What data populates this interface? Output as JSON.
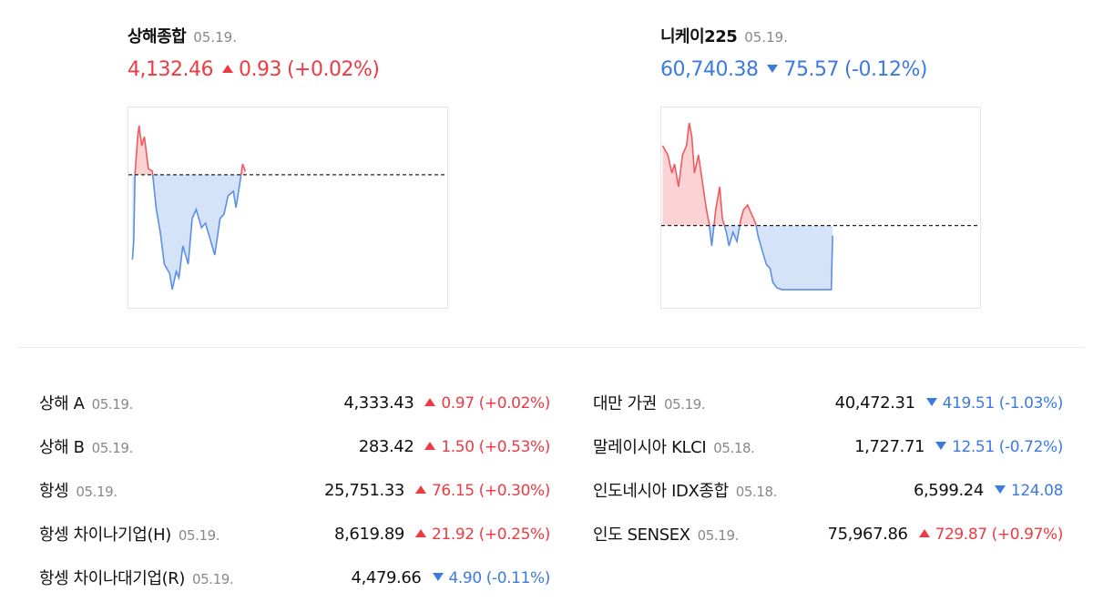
{
  "charts": [
    {
      "name": "상해종합",
      "date": "05.19.",
      "price": "4,132.46",
      "change": "0.93",
      "pct": "(+0.02%)",
      "direction": "up",
      "chart": {
        "type": "line",
        "xlim": [
          0,
          240
        ],
        "ylim": [
          4095,
          4150
        ],
        "baseline": 4131.53,
        "x": [
          3,
          4,
          5,
          7,
          8,
          10,
          12,
          15,
          18,
          21,
          24,
          27,
          31,
          33,
          36,
          38,
          41,
          45,
          48,
          51,
          55,
          58,
          62,
          65,
          69,
          72,
          75,
          79,
          81,
          84,
          86,
          88
        ],
        "values": [
          4108.25,
          4113.25,
          4132,
          4142,
          4145,
          4139.5,
          4142,
          4133.25,
          4132.5,
          4122,
          4115.75,
          4107,
          4104.5,
          4100,
          4105,
          4103.25,
          4112,
          4107,
          4119.5,
          4122,
          4117,
          4118.25,
          4113.25,
          4109.5,
          4119.5,
          4120.75,
          4125.75,
          4127,
          4122.5,
          4129.5,
          4134.5,
          4132.46
        ]
      }
    },
    {
      "name": "니케이225",
      "date": "05.19.",
      "price": "60,740.38",
      "change": "75.57",
      "pct": "(-0.12%)",
      "direction": "down",
      "chart": {
        "type": "line",
        "xlim": [
          0,
          240
        ],
        "ylim": [
          60200,
          61700
        ],
        "baseline": 60815.95,
        "x": [
          1,
          5,
          8,
          10,
          13,
          16,
          19,
          21,
          23,
          25,
          28,
          31,
          34,
          36,
          38,
          41,
          44,
          46,
          49,
          51,
          54,
          57,
          60,
          62,
          65,
          68,
          71,
          73,
          76,
          79,
          82,
          84,
          87,
          91,
          99,
          113,
          128,
          129
        ],
        "values": [
          61414,
          61345,
          61209,
          61277,
          61107,
          61345,
          61414,
          61584,
          61482,
          61209,
          61345,
          61141,
          60936,
          60834,
          60663,
          60936,
          61107,
          60868,
          60766,
          60663,
          60766,
          60697,
          60868,
          60936,
          60970,
          60902,
          60834,
          60732,
          60629,
          60527,
          60493,
          60391,
          60350,
          60336,
          60336,
          60336,
          60336,
          60740.38
        ]
      }
    }
  ],
  "left_list": [
    {
      "name": "상해 A",
      "date": "05.19.",
      "price": "4,333.43",
      "change": "0.97",
      "pct": "(+0.02%)",
      "direction": "up"
    },
    {
      "name": "상해 B",
      "date": "05.19.",
      "price": "283.42",
      "change": "1.50",
      "pct": "(+0.53%)",
      "direction": "up"
    },
    {
      "name": "항셍",
      "date": "05.19.",
      "price": "25,751.33",
      "change": "76.15",
      "pct": "(+0.30%)",
      "direction": "up"
    },
    {
      "name": "항셍 차이나기업(H)",
      "date": "05.19.",
      "price": "8,619.89",
      "change": "21.92",
      "pct": "(+0.25%)",
      "direction": "up"
    },
    {
      "name": "항셍 차이나대기업(R)",
      "date": "05.19.",
      "price": "4,479.66",
      "change": "4.90",
      "pct": "(-0.11%)",
      "direction": "down"
    }
  ],
  "right_list": [
    {
      "name": "대만 가권",
      "date": "05.19.",
      "price": "40,472.31",
      "change": "419.51",
      "pct": "(-1.03%)",
      "direction": "down"
    },
    {
      "name": "말레이시아 KLCI",
      "date": "05.18.",
      "price": "1,727.71",
      "change": "12.51",
      "pct": "(-0.72%)",
      "direction": "down"
    },
    {
      "name": "인도네시아 IDX종합",
      "date": "05.18.",
      "price": "6,599.24",
      "change": "124.08",
      "direction": "down"
    },
    {
      "name": "인도 SENSEX",
      "date": "05.19.",
      "price": "75,967.86",
      "change": "729.87",
      "pct": "(+0.97%)",
      "direction": "up"
    }
  ]
}
